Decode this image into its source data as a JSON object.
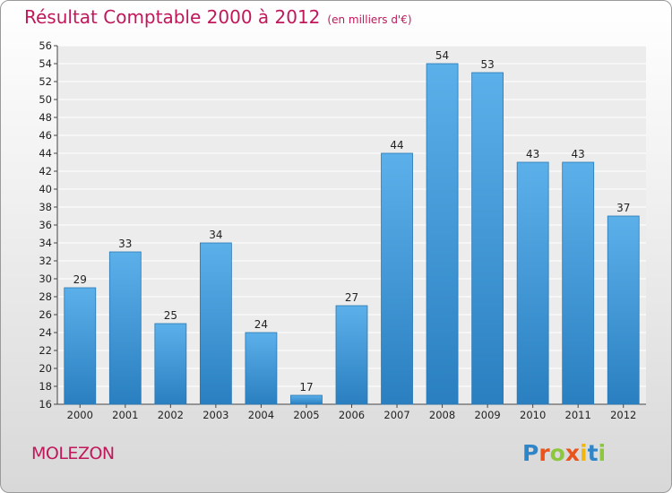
{
  "title": "Résultat Comptable 2000 à 2012",
  "subtitle": "(en milliers d'€)",
  "place": "MOLEZON",
  "logo": {
    "letters": [
      "P",
      "r",
      "o",
      "x",
      "i",
      "t",
      "i"
    ],
    "colors": [
      "#2e86c8",
      "#e8541c",
      "#8dc63f",
      "#e8541c",
      "#f2b70c",
      "#2e86c8",
      "#8dc63f"
    ]
  },
  "colors": {
    "bar": "#4aa3e0",
    "title": "#c0185a"
  },
  "chart_data": {
    "type": "bar",
    "categories": [
      "2000",
      "2001",
      "2002",
      "2003",
      "2004",
      "2005",
      "2006",
      "2007",
      "2008",
      "2009",
      "2010",
      "2011",
      "2012"
    ],
    "values": [
      29,
      33,
      25,
      34,
      24,
      17,
      27,
      44,
      54,
      53,
      43,
      43,
      37
    ],
    "ylim": [
      16,
      56
    ],
    "ytick_step": 2,
    "grid": true,
    "data_labels": true
  }
}
